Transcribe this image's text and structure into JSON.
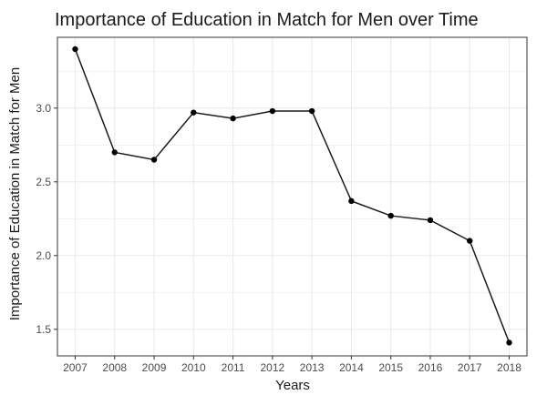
{
  "chart_data": {
    "type": "line",
    "title": "Importance of Education in Match for Men over Time",
    "xlabel": "Years",
    "ylabel": "Importance of Education in Match for Men",
    "x": [
      2007,
      2008,
      2009,
      2010,
      2011,
      2012,
      2013,
      2014,
      2015,
      2016,
      2017,
      2018
    ],
    "series": [
      {
        "name": "",
        "values": [
          3.4,
          2.7,
          2.65,
          2.97,
          2.93,
          2.98,
          2.98,
          2.37,
          2.27,
          2.24,
          2.1,
          1.41
        ]
      }
    ],
    "xlim": [
      2006.55,
      2018.45
    ],
    "ylim": [
      1.32,
      3.48
    ],
    "yticks": [
      1.5,
      2.0,
      2.5,
      3.0
    ],
    "yticklabels": [
      "1.5",
      "2.0",
      "2.5",
      "3.0"
    ],
    "grid": true,
    "legend": "none",
    "colors": {
      "line": "#1a1a1a",
      "point": "#000000",
      "grid": "#ebebeb",
      "border": "#333333"
    }
  }
}
